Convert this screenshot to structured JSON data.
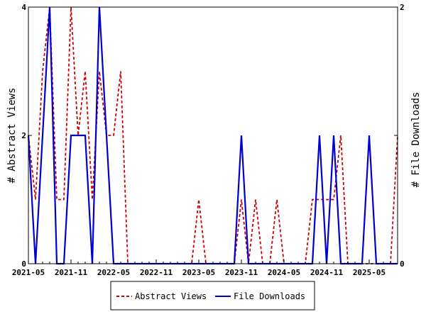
{
  "chart_data": {
    "type": "line",
    "title": "",
    "ylabel_left": "# Abstract Views",
    "ylabel_right": "# File Downloads",
    "ylim_left": [
      0,
      4
    ],
    "ylim_right": [
      0,
      2
    ],
    "yticks_left": [
      "0",
      "2",
      "4"
    ],
    "yticks_right": [
      "0",
      "1",
      "2"
    ],
    "xticks": [
      "2021-05",
      "2021-11",
      "2022-05",
      "2022-11",
      "2023-05",
      "2023-11",
      "2024-05",
      "2024-11",
      "2025-05"
    ],
    "x": [
      "2021-05",
      "2021-06",
      "2021-07",
      "2021-08",
      "2021-09",
      "2021-10",
      "2021-11",
      "2021-12",
      "2022-01",
      "2022-02",
      "2022-03",
      "2022-04",
      "2022-05",
      "2022-06",
      "2022-07",
      "2022-08",
      "2022-09",
      "2022-10",
      "2022-11",
      "2022-12",
      "2023-01",
      "2023-02",
      "2023-03",
      "2023-04",
      "2023-05",
      "2023-06",
      "2023-07",
      "2023-08",
      "2023-09",
      "2023-10",
      "2023-11",
      "2023-12",
      "2024-01",
      "2024-02",
      "2024-03",
      "2024-04",
      "2024-05",
      "2024-06",
      "2024-07",
      "2024-08",
      "2024-09",
      "2024-10",
      "2024-11",
      "2024-12",
      "2025-01",
      "2025-02",
      "2025-03",
      "2025-04",
      "2025-05",
      "2025-06",
      "2025-07",
      "2025-08",
      "2025-09"
    ],
    "series": [
      {
        "name": "Abstract Views",
        "axis": "left",
        "color": "#cc0000",
        "style": "dashed",
        "values": [
          2,
          1,
          3,
          4,
          1,
          1,
          4,
          2,
          3,
          1,
          3,
          2,
          2,
          3,
          0,
          0,
          0,
          0,
          0,
          0,
          0,
          0,
          0,
          0,
          1,
          0,
          0,
          0,
          0,
          0,
          1,
          0,
          1,
          0,
          0,
          1,
          0,
          0,
          0,
          0,
          1,
          1,
          1,
          1,
          2,
          0,
          0,
          0,
          0,
          0,
          0,
          0,
          2
        ]
      },
      {
        "name": "File Downloads",
        "axis": "right",
        "color": "#0000cc",
        "style": "solid",
        "values": [
          1,
          0,
          1,
          2,
          0,
          0,
          1,
          1,
          1,
          0,
          2,
          1,
          0,
          0,
          0,
          0,
          0,
          0,
          0,
          0,
          0,
          0,
          0,
          0,
          0,
          0,
          0,
          0,
          0,
          0,
          1,
          0,
          0,
          0,
          0,
          0,
          0,
          0,
          0,
          0,
          0,
          1,
          0,
          1,
          0,
          0,
          0,
          0,
          1,
          0,
          0,
          0,
          0
        ]
      }
    ],
    "legend_position": "bottom",
    "grid": false
  }
}
